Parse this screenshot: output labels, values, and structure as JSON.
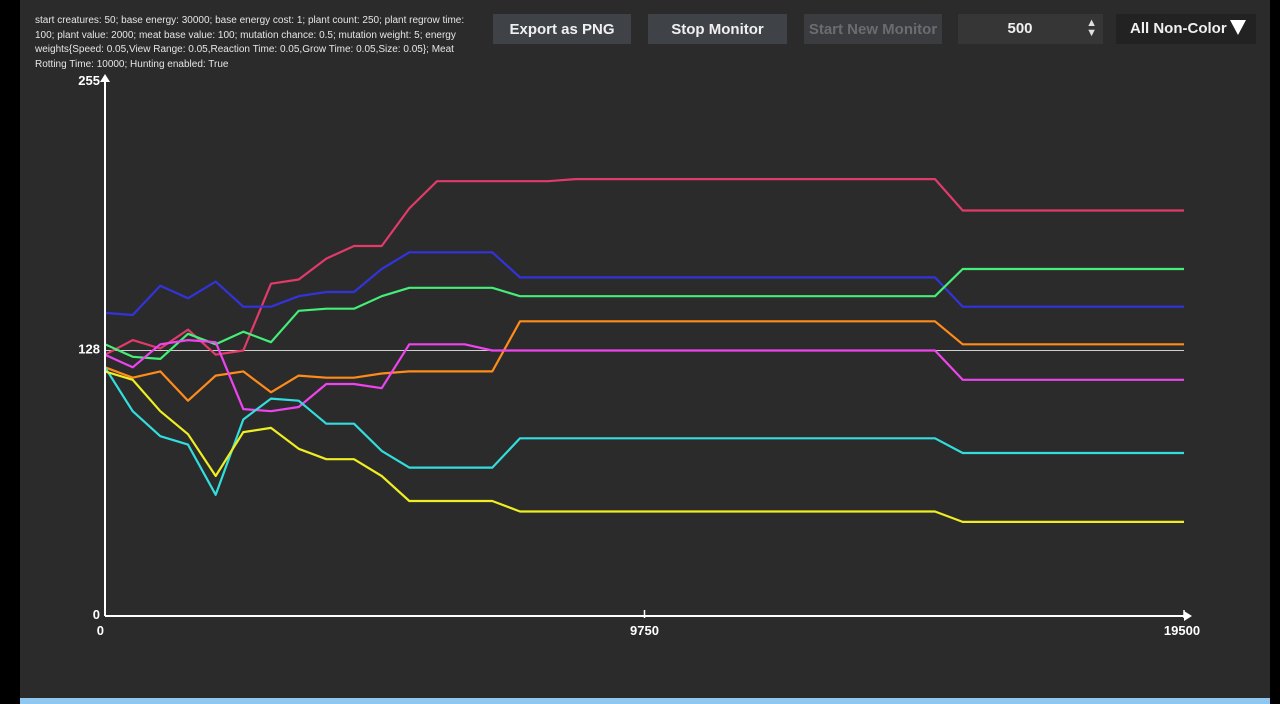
{
  "params_text": "start creatures: 50; base energy: 30000; base energy cost: 1; plant count: 250; plant regrow time: 100; plant value: 2000; meat base value: 100; mutation chance: 0.5; mutation weight: 5; energy weights{Speed: 0.05,View Range: 0.05,Reaction Time: 0.05,Grow Time: 0.05,Size: 0.05}; Meat Rotting Time: 10000; Hunting enabled: True",
  "toolbar": {
    "export_label": "Export as PNG",
    "stop_label": "Stop Monitor",
    "start_label": "Start New Monitor",
    "spinner_value": "500",
    "spinner_icon": "up-down-arrows-icon",
    "dropdown_label": "All Non-Color",
    "dropdown_icon": "triangle-down-icon"
  },
  "colors": {
    "background": "#2b2b2b",
    "button": "#3f4247",
    "axis": "#ffffff",
    "reference_line": "#cfcfcf"
  },
  "chart_data": {
    "type": "line",
    "xlim": [
      0,
      19500
    ],
    "ylim": [
      0,
      255
    ],
    "x_ticks": [
      "0",
      "9750",
      "19500"
    ],
    "y_ticks": [
      "0",
      "128",
      "255"
    ],
    "reference_line_y": 127,
    "x": [
      0,
      500,
      1000,
      1500,
      2000,
      2500,
      3000,
      3500,
      4000,
      4500,
      5000,
      5500,
      6000,
      6500,
      7000,
      7500,
      8000,
      8500,
      9000,
      9500,
      10000,
      15000,
      15500,
      19500
    ],
    "series": [
      {
        "color": "#e23a6a",
        "values": [
          125,
          132,
          128,
          137,
          125,
          127,
          159,
          161,
          171,
          177,
          177,
          195,
          208,
          208,
          208,
          208,
          208,
          209,
          209,
          209,
          209,
          209,
          194,
          194
        ]
      },
      {
        "color": "#3333dd",
        "values": [
          145,
          144,
          158,
          152,
          160,
          148,
          148,
          153,
          155,
          155,
          166,
          174,
          174,
          174,
          174,
          162,
          162,
          162,
          162,
          162,
          162,
          162,
          148,
          148
        ]
      },
      {
        "color": "#44ee77",
        "values": [
          130,
          124,
          123,
          135,
          130,
          136,
          131,
          146,
          147,
          147,
          153,
          157,
          157,
          157,
          157,
          153,
          153,
          153,
          153,
          153,
          153,
          153,
          166,
          166
        ]
      },
      {
        "color": "#ff8c1a",
        "values": [
          119,
          114,
          117,
          103,
          115,
          117,
          107,
          115,
          114,
          114,
          116,
          117,
          117,
          117,
          117,
          141,
          141,
          141,
          141,
          141,
          141,
          141,
          130,
          130
        ]
      },
      {
        "color": "#ee44ee",
        "values": [
          125,
          119,
          130,
          132,
          131,
          99,
          98,
          100,
          111,
          111,
          109,
          130,
          130,
          130,
          127,
          127,
          127,
          127,
          127,
          127,
          127,
          127,
          113,
          113
        ]
      },
      {
        "color": "#33dddd",
        "values": [
          119,
          98,
          86,
          82,
          58,
          94,
          104,
          103,
          92,
          92,
          79,
          71,
          71,
          71,
          71,
          85,
          85,
          85,
          85,
          85,
          85,
          85,
          78,
          78
        ]
      },
      {
        "color": "#eeee22",
        "values": [
          117,
          113,
          98,
          87,
          67,
          88,
          90,
          80,
          75,
          75,
          67,
          55,
          55,
          55,
          55,
          50,
          50,
          50,
          50,
          50,
          50,
          50,
          45,
          45
        ]
      }
    ]
  }
}
